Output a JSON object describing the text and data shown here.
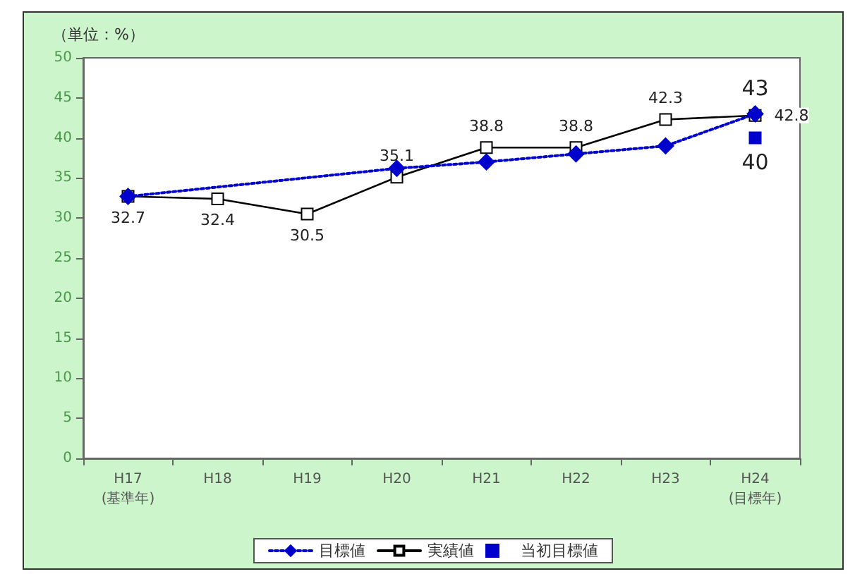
{
  "chart_data": {
    "type": "line",
    "annotations": [
      "（単位：%）"
    ],
    "categories": [
      "H17\n(基準年)",
      "H18",
      "H19",
      "H20",
      "H21",
      "H22",
      "H23",
      "H24\n(目標年)"
    ],
    "series": [
      {
        "name": "目標値",
        "color": "#0000cc",
        "line_style": "dotted",
        "marker": "diamond",
        "values": [
          32.7,
          null,
          null,
          36.2,
          37.0,
          38.0,
          39.0,
          43
        ],
        "value_labels": [
          null,
          null,
          null,
          null,
          null,
          null,
          null,
          "43"
        ]
      },
      {
        "name": "実績値",
        "color": "#000000",
        "line_style": "solid",
        "marker": "square",
        "values": [
          32.7,
          32.4,
          30.5,
          35.1,
          38.8,
          38.8,
          42.3,
          42.8
        ],
        "value_labels": [
          "32.7",
          "32.4",
          "30.5",
          "35.1",
          "38.8",
          "38.8",
          "42.3",
          "42.8"
        ]
      },
      {
        "name": "当初目標値",
        "type": "scatter",
        "color": "#0000cc",
        "marker": "square",
        "values": [
          null,
          null,
          null,
          null,
          null,
          null,
          null,
          40
        ],
        "value_labels": [
          null,
          null,
          null,
          null,
          null,
          null,
          null,
          "40"
        ]
      }
    ],
    "ylim": [
      0,
      50
    ],
    "yticks": [
      0,
      5,
      10,
      15,
      20,
      25,
      30,
      35,
      40,
      45,
      50
    ],
    "grid": false,
    "legend": "bottom"
  }
}
